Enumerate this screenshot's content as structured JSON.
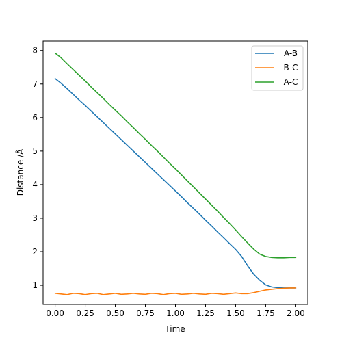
{
  "chart_data": {
    "type": "line",
    "xlabel": "Time",
    "ylabel": "Distance /Å",
    "xlim": [
      -0.1,
      2.1
    ],
    "ylim": [
      0.43,
      8.28
    ],
    "xticks": [
      "0.00",
      "0.25",
      "0.50",
      "0.75",
      "1.00",
      "1.25",
      "1.50",
      "1.75",
      "2.00"
    ],
    "yticks": [
      "1",
      "2",
      "3",
      "4",
      "5",
      "6",
      "7",
      "8"
    ],
    "legend_position": "top-right",
    "series": [
      {
        "name": "A-B",
        "color": "#1f77b4",
        "x": [
          0.0,
          0.05,
          0.1,
          0.15,
          0.2,
          0.25,
          0.3,
          0.35,
          0.4,
          0.45,
          0.5,
          0.55,
          0.6,
          0.65,
          0.7,
          0.75,
          0.8,
          0.85,
          0.9,
          0.95,
          1.0,
          1.05,
          1.1,
          1.15,
          1.2,
          1.25,
          1.3,
          1.35,
          1.4,
          1.45,
          1.5,
          1.55,
          1.6,
          1.65,
          1.7,
          1.75,
          1.8,
          1.85,
          1.9,
          1.95,
          2.0
        ],
        "y": [
          7.16,
          7.02,
          6.86,
          6.69,
          6.52,
          6.36,
          6.19,
          6.02,
          5.85,
          5.68,
          5.51,
          5.34,
          5.17,
          5.0,
          4.83,
          4.66,
          4.49,
          4.32,
          4.15,
          3.98,
          3.81,
          3.64,
          3.46,
          3.29,
          3.12,
          2.94,
          2.77,
          2.59,
          2.42,
          2.24,
          2.07,
          1.86,
          1.58,
          1.33,
          1.15,
          1.01,
          0.95,
          0.93,
          0.92,
          0.92,
          0.92
        ]
      },
      {
        "name": "B-C",
        "color": "#ff7f0e",
        "x": [
          0.0,
          0.05,
          0.1,
          0.15,
          0.2,
          0.25,
          0.3,
          0.35,
          0.4,
          0.45,
          0.5,
          0.55,
          0.6,
          0.65,
          0.7,
          0.75,
          0.8,
          0.85,
          0.9,
          0.95,
          1.0,
          1.05,
          1.1,
          1.15,
          1.2,
          1.25,
          1.3,
          1.35,
          1.4,
          1.45,
          1.5,
          1.55,
          1.6,
          1.65,
          1.7,
          1.75,
          1.8,
          1.85,
          1.9,
          1.95,
          2.0
        ],
        "y": [
          0.76,
          0.74,
          0.72,
          0.76,
          0.75,
          0.72,
          0.75,
          0.76,
          0.72,
          0.74,
          0.76,
          0.73,
          0.74,
          0.76,
          0.74,
          0.73,
          0.76,
          0.75,
          0.72,
          0.75,
          0.76,
          0.73,
          0.74,
          0.76,
          0.74,
          0.73,
          0.76,
          0.75,
          0.73,
          0.75,
          0.77,
          0.75,
          0.75,
          0.78,
          0.82,
          0.86,
          0.88,
          0.9,
          0.91,
          0.92,
          0.92
        ]
      },
      {
        "name": "A-C",
        "color": "#2ca02c",
        "x": [
          0.0,
          0.05,
          0.1,
          0.15,
          0.2,
          0.25,
          0.3,
          0.35,
          0.4,
          0.45,
          0.5,
          0.55,
          0.6,
          0.65,
          0.7,
          0.75,
          0.8,
          0.85,
          0.9,
          0.95,
          1.0,
          1.05,
          1.1,
          1.15,
          1.2,
          1.25,
          1.3,
          1.35,
          1.4,
          1.45,
          1.5,
          1.55,
          1.6,
          1.65,
          1.7,
          1.75,
          1.8,
          1.85,
          1.9,
          1.95,
          2.0
        ],
        "y": [
          7.92,
          7.78,
          7.6,
          7.43,
          7.26,
          7.09,
          6.91,
          6.74,
          6.57,
          6.39,
          6.22,
          6.05,
          5.87,
          5.7,
          5.52,
          5.35,
          5.17,
          5.0,
          4.82,
          4.64,
          4.47,
          4.29,
          4.11,
          3.93,
          3.75,
          3.57,
          3.39,
          3.21,
          3.02,
          2.84,
          2.65,
          2.45,
          2.26,
          2.08,
          1.93,
          1.86,
          1.83,
          1.82,
          1.82,
          1.83,
          1.83
        ]
      }
    ]
  }
}
